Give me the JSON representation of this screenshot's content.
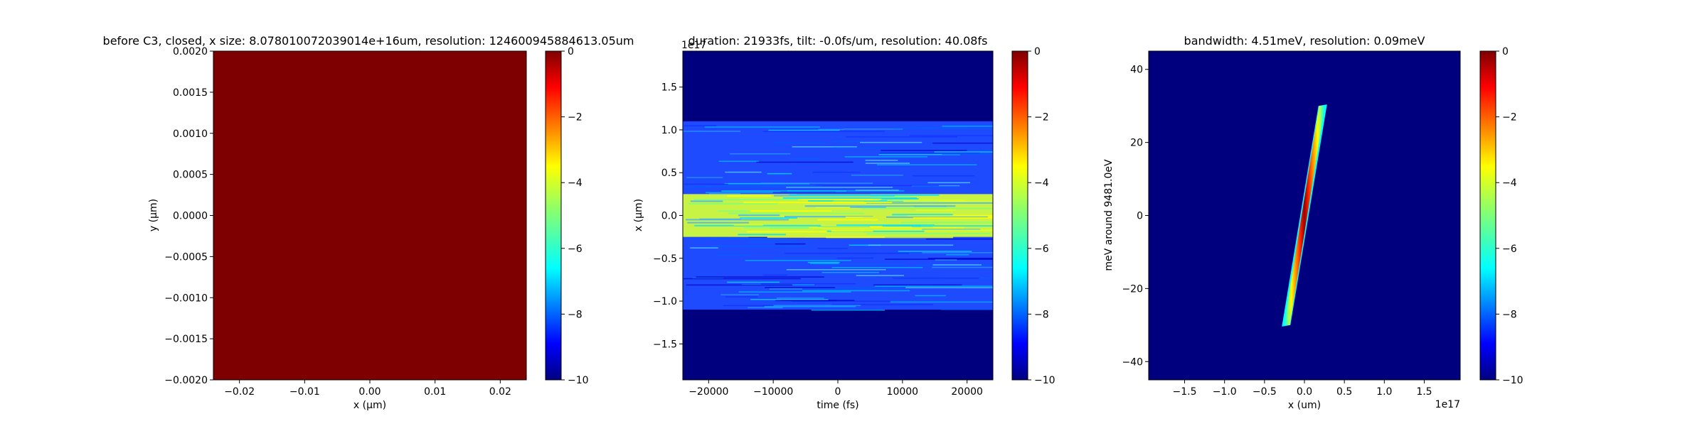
{
  "chart_data": [
    {
      "type": "heatmap",
      "title": "before C3, closed, x size: 8.078010072039014e+16um, resolution: 124600945884613.05um",
      "xlabel": "x (μm)",
      "ylabel": "y (μm)",
      "xlim": [
        -0.024,
        0.024
      ],
      "ylim": [
        -0.002,
        0.002
      ],
      "xticks": [
        "−0.02",
        "−0.01",
        "0.00",
        "0.01",
        "0.02"
      ],
      "xtick_values": [
        -0.02,
        -0.01,
        0,
        0.01,
        0.02
      ],
      "yticks": [
        "−0.0020",
        "−0.0015",
        "−0.0010",
        "−0.0005",
        "0.0000",
        "0.0005",
        "0.0010",
        "0.0015",
        "0.0020"
      ],
      "ytick_values": [
        -0.002,
        -0.0015,
        -0.001,
        -0.0005,
        0,
        0.0005,
        0.001,
        0.0015,
        0.002
      ],
      "field_value": 0,
      "colorbar": {
        "range": [
          -10,
          0
        ],
        "ticks": [
          "0",
          "−2",
          "−4",
          "−6",
          "−8",
          "−10"
        ],
        "tick_values": [
          0,
          -2,
          -4,
          -6,
          -8,
          -10
        ],
        "colormap": "jet"
      }
    },
    {
      "type": "heatmap",
      "title": "duration: 21933fs, tilt: -0.0fs/um, resolution: 40.08fs",
      "xlabel": "time (fs)",
      "ylabel": "x (μm)",
      "y_offset_label": "1e17",
      "xlim": [
        -24000,
        24000
      ],
      "ylim": [
        -1.92,
        1.92
      ],
      "xticks": [
        "−20000",
        "−10000",
        "0",
        "10000",
        "20000"
      ],
      "xtick_values": [
        -20000,
        -10000,
        0,
        10000,
        20000
      ],
      "yticks": [
        "−1.5",
        "−1.0",
        "−0.5",
        "0.0",
        "0.5",
        "1.0",
        "1.5"
      ],
      "ytick_values": [
        -1.5,
        -1.0,
        -0.5,
        0,
        0.5,
        1.0,
        1.5
      ],
      "core_band": [
        -0.25,
        0.25
      ],
      "outer_band": [
        -1.1,
        1.1
      ],
      "core_value": -4.2,
      "outer_value": -7.2,
      "background_value": -10,
      "colorbar": {
        "range": [
          -10,
          0
        ],
        "ticks": [
          "0",
          "−2",
          "−4",
          "−6",
          "−8",
          "−10"
        ],
        "tick_values": [
          0,
          -2,
          -4,
          -6,
          -8,
          -10
        ],
        "colormap": "jet"
      }
    },
    {
      "type": "heatmap",
      "title": "bandwidth: 4.51meV, resolution: 0.09meV",
      "xlabel": "x (um)",
      "ylabel": "meV around 9481.0eV",
      "x_offset_label": "1e17",
      "xlim": [
        -1.95,
        1.95
      ],
      "ylim": [
        -45,
        45
      ],
      "xticks": [
        "−1.5",
        "−1.0",
        "−0.5",
        "0.0",
        "0.5",
        "1.0",
        "1.5"
      ],
      "xtick_values": [
        -1.5,
        -1.0,
        -0.5,
        0,
        0.5,
        1.0,
        1.5
      ],
      "yticks": [
        "−40",
        "−20",
        "0",
        "20",
        "40"
      ],
      "ytick_values": [
        -40,
        -20,
        0,
        20,
        40
      ],
      "streak": {
        "x": [
          -0.22,
          0.22
        ],
        "y": [
          -30,
          30
        ],
        "peak_value": 0,
        "edge_value": -6
      },
      "background_value": -10,
      "colorbar": {
        "range": [
          -10,
          0
        ],
        "ticks": [
          "0",
          "−2",
          "−4",
          "−6",
          "−8",
          "−10"
        ],
        "tick_values": [
          0,
          -2,
          -4,
          -6,
          -8,
          -10
        ],
        "colormap": "jet"
      }
    }
  ]
}
